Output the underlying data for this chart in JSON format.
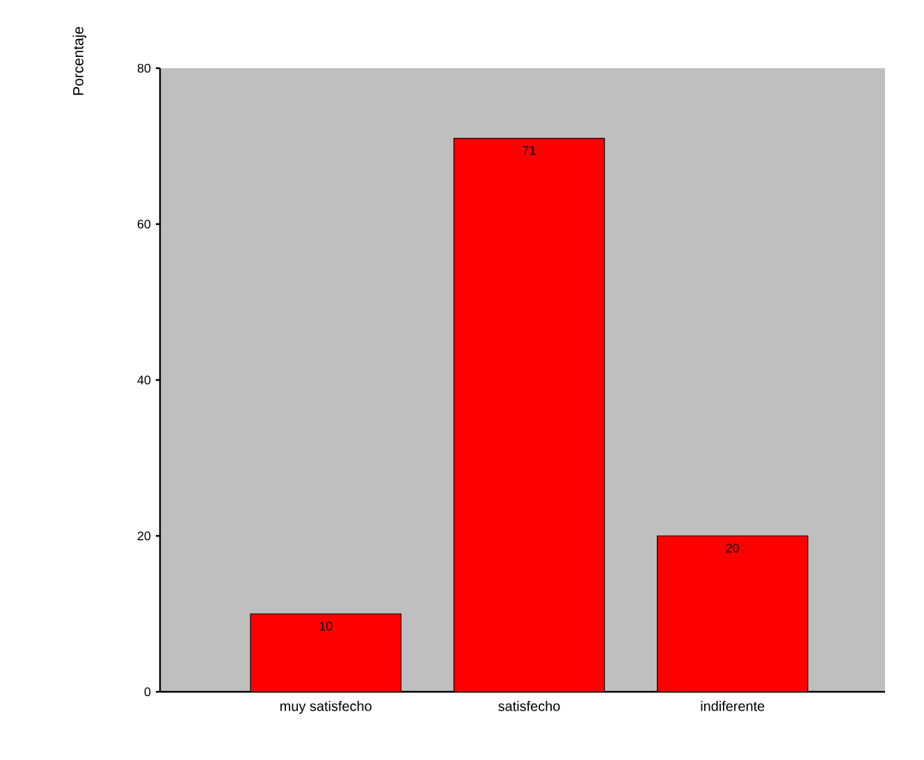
{
  "chart_data": {
    "type": "bar",
    "ylabel": "Porcentaje",
    "categories": [
      "muy satisfecho",
      "satisfecho",
      "indiferente"
    ],
    "values": [
      10,
      71,
      20
    ],
    "color": "#ff0000",
    "ylim": [
      0,
      80
    ],
    "yticks": [
      0,
      20,
      40,
      60,
      80
    ],
    "data_labels": true
  }
}
